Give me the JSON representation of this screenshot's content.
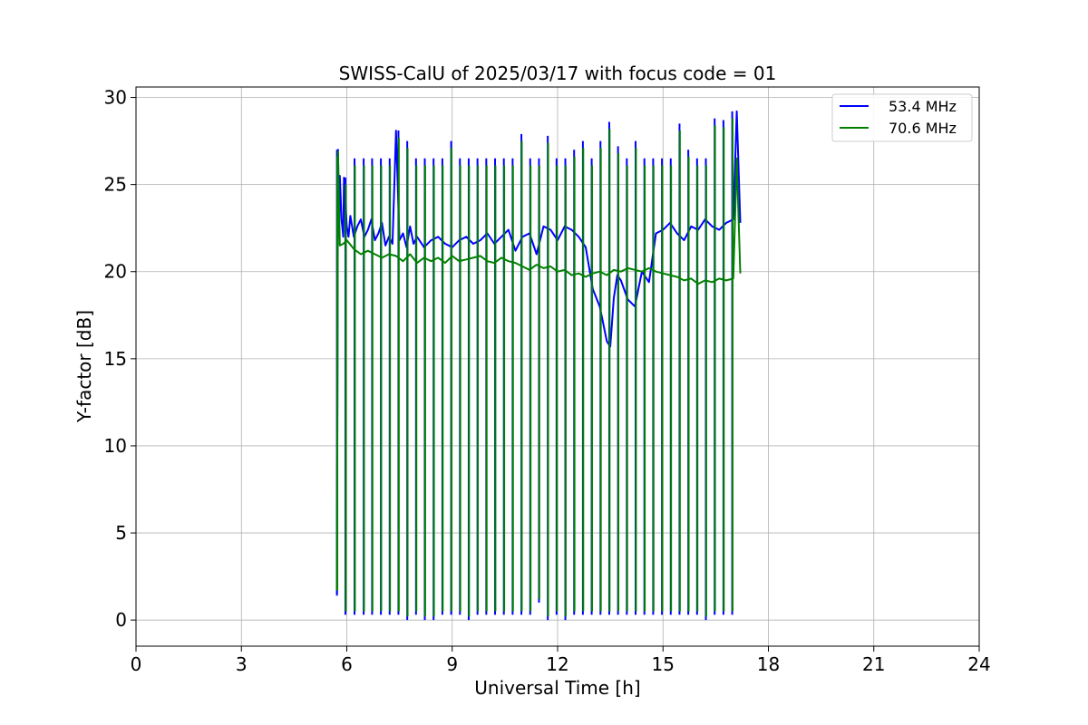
{
  "chart_data": {
    "type": "line",
    "title": "SWISS-CalU of 2025/03/17 with focus code = 01",
    "xlabel": "Universal Time [h]",
    "ylabel": "Y-factor [dB]",
    "xlim": [
      0,
      24
    ],
    "ylim": [
      -1.5,
      30.6
    ],
    "x_ticks": [
      0,
      3,
      6,
      9,
      12,
      15,
      18,
      21,
      24
    ],
    "y_ticks": [
      0,
      5,
      10,
      15,
      20,
      25,
      30
    ],
    "grid": true,
    "legend_position": "top-right",
    "series": [
      {
        "name": "53.4 MHz",
        "color": "#0000ff",
        "x": [
          5.72,
          5.75,
          5.78,
          5.8,
          5.85,
          5.9,
          5.92,
          6.0,
          6.05,
          6.1,
          6.2,
          6.3,
          6.4,
          6.5,
          6.6,
          6.7,
          6.8,
          6.9,
          7.0,
          7.1,
          7.2,
          7.3,
          7.4,
          7.5,
          7.6,
          7.7,
          7.8,
          7.9,
          8.0,
          8.2,
          8.4,
          8.6,
          8.8,
          9.0,
          9.2,
          9.4,
          9.6,
          9.8,
          10.0,
          10.2,
          10.4,
          10.6,
          10.8,
          11.0,
          11.2,
          11.4,
          11.6,
          11.8,
          12.0,
          12.2,
          12.4,
          12.6,
          12.8,
          13.0,
          13.2,
          13.4,
          13.5,
          13.6,
          13.7,
          13.8,
          14.0,
          14.2,
          14.3,
          14.4,
          14.6,
          14.8,
          15.0,
          15.2,
          15.4,
          15.6,
          15.8,
          16.0,
          16.2,
          16.4,
          16.6,
          16.8,
          17.0,
          17.1,
          17.2
        ],
        "y": [
          1.4,
          27.0,
          22.5,
          25.5,
          23.0,
          22.0,
          25.4,
          22.6,
          22.0,
          23.2,
          22.0,
          22.6,
          23.0,
          22.0,
          22.4,
          23.0,
          21.8,
          22.2,
          22.8,
          21.5,
          22.0,
          21.6,
          28.1,
          21.8,
          22.2,
          21.4,
          22.6,
          21.6,
          22.0,
          21.4,
          21.8,
          22.0,
          21.6,
          21.4,
          21.8,
          22.0,
          21.6,
          21.8,
          22.2,
          21.6,
          22.0,
          22.4,
          21.2,
          22.0,
          22.2,
          21.0,
          22.6,
          22.4,
          21.8,
          22.6,
          22.4,
          22.0,
          21.4,
          19.0,
          18.0,
          16.0,
          15.7,
          18.5,
          19.8,
          19.5,
          18.4,
          18.0,
          19.0,
          20.0,
          19.4,
          22.2,
          22.4,
          22.8,
          22.2,
          21.8,
          22.6,
          22.4,
          23.0,
          22.6,
          22.4,
          22.8,
          23.0,
          29.2,
          22.8
        ]
      },
      {
        "name": "70.6 MHz",
        "color": "#008000",
        "x": [
          5.72,
          5.75,
          5.8,
          5.9,
          6.0,
          6.2,
          6.4,
          6.6,
          6.8,
          7.0,
          7.2,
          7.4,
          7.6,
          7.8,
          8.0,
          8.2,
          8.4,
          8.6,
          8.8,
          9.0,
          9.2,
          9.4,
          9.6,
          9.8,
          10.0,
          10.2,
          10.4,
          10.6,
          10.8,
          11.0,
          11.2,
          11.4,
          11.6,
          11.8,
          12.0,
          12.2,
          12.4,
          12.6,
          12.8,
          13.0,
          13.2,
          13.4,
          13.6,
          13.8,
          14.0,
          14.2,
          14.4,
          14.6,
          14.8,
          15.0,
          15.2,
          15.4,
          15.6,
          15.8,
          16.0,
          16.2,
          16.4,
          16.6,
          16.8,
          17.0,
          17.1,
          17.2
        ],
        "y": [
          1.7,
          26.9,
          21.5,
          21.6,
          21.8,
          21.3,
          21.0,
          21.2,
          21.0,
          20.8,
          21.0,
          20.9,
          20.6,
          21.0,
          20.5,
          20.8,
          20.6,
          20.8,
          20.5,
          20.9,
          20.6,
          20.7,
          20.8,
          20.9,
          20.6,
          20.5,
          20.8,
          20.6,
          20.5,
          20.3,
          20.1,
          20.4,
          20.2,
          20.3,
          20.0,
          20.1,
          19.8,
          19.9,
          19.7,
          19.9,
          20.0,
          19.8,
          20.1,
          20.0,
          20.2,
          20.1,
          20.0,
          20.2,
          20.0,
          19.9,
          19.8,
          19.7,
          19.5,
          19.6,
          19.3,
          19.5,
          19.4,
          19.6,
          19.5,
          19.6,
          26.5,
          19.9
        ]
      }
    ],
    "calibration_spikes_x": [
      5.72,
      5.96,
      6.22,
      6.48,
      6.72,
      6.97,
      7.22,
      7.47,
      7.72,
      7.97,
      8.22,
      8.47,
      8.72,
      8.97,
      9.22,
      9.47,
      9.72,
      9.97,
      10.22,
      10.47,
      10.72,
      10.97,
      11.22,
      11.47,
      11.72,
      11.97,
      12.22,
      12.47,
      12.72,
      12.97,
      13.22,
      13.47,
      13.72,
      13.97,
      14.22,
      14.47,
      14.72,
      14.97,
      15.22,
      15.47,
      15.72,
      15.97,
      16.22,
      16.47,
      16.72,
      16.97
    ],
    "calibration_spikes_low": [
      1.5,
      0.3,
      0.3,
      0.3,
      0.3,
      0.3,
      0.3,
      0.3,
      0.0,
      0.3,
      0.0,
      0.0,
      0.3,
      0.3,
      0.3,
      0.0,
      0.3,
      0.3,
      0.3,
      0.3,
      0.3,
      0.3,
      0.3,
      1.0,
      0.0,
      0.3,
      0.0,
      0.3,
      0.3,
      0.3,
      0.3,
      0.3,
      0.3,
      0.3,
      0.3,
      0.3,
      0.3,
      0.3,
      0.3,
      0.3,
      0.3,
      0.3,
      0.0,
      0.3,
      0.3,
      0.3
    ],
    "calibration_spikes_high": [
      27.0,
      25.4,
      26.5,
      26.5,
      26.5,
      26.5,
      26.5,
      28.1,
      27.5,
      26.5,
      26.5,
      26.5,
      26.5,
      27.5,
      26.5,
      26.5,
      26.5,
      26.5,
      26.5,
      26.5,
      26.5,
      27.9,
      26.5,
      26.5,
      27.8,
      26.5,
      26.5,
      27.0,
      27.5,
      26.5,
      27.5,
      28.6,
      27.2,
      26.5,
      27.5,
      26.5,
      26.5,
      26.5,
      26.5,
      28.5,
      27.0,
      26.5,
      26.5,
      28.8,
      28.7,
      29.2
    ]
  }
}
